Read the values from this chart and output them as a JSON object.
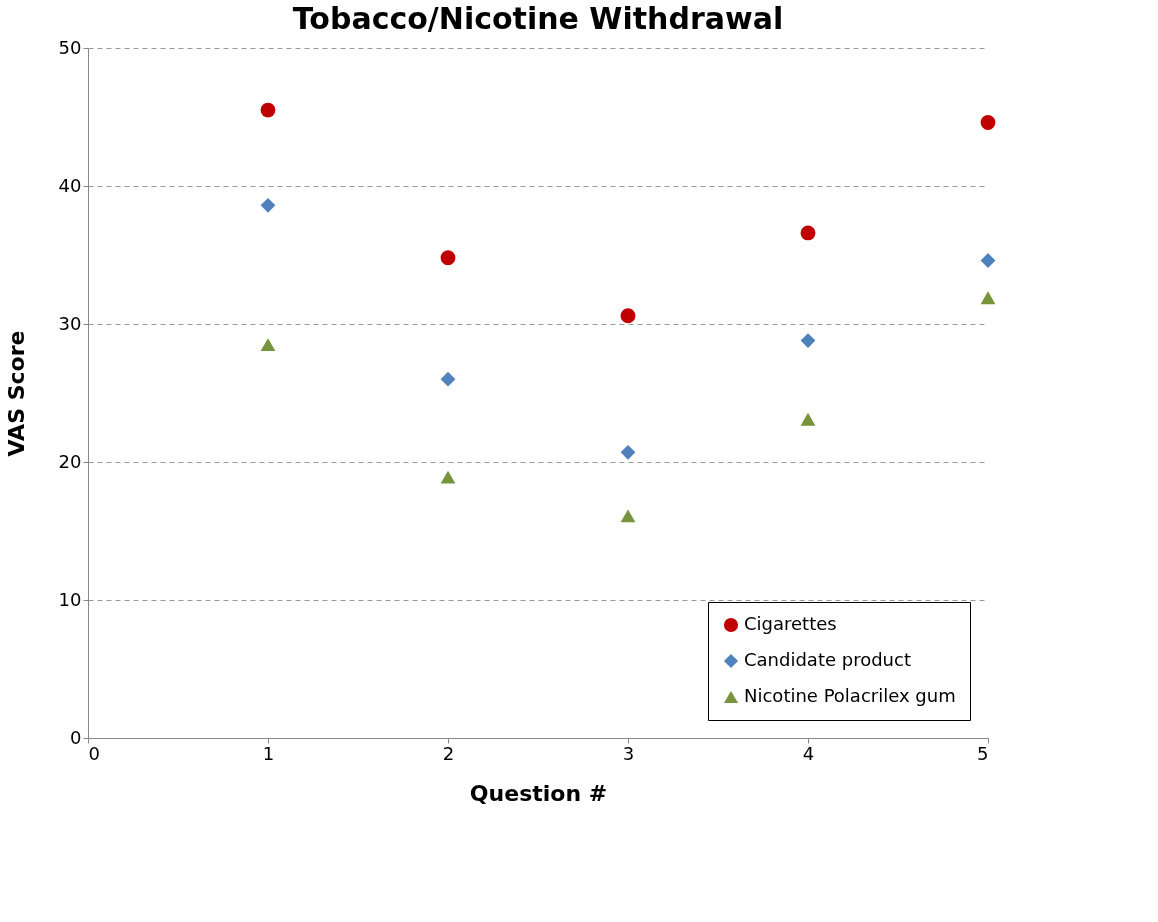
{
  "chart_data": {
    "type": "scatter",
    "title": "Tobacco/Nicotine Withdrawal",
    "xlabel": "Question #",
    "ylabel": "VAS Score",
    "x": [
      1,
      2,
      3,
      4,
      5
    ],
    "series": [
      {
        "name": "Cigarettes",
        "color": "#c00000",
        "marker": "circle",
        "values": [
          45.5,
          34.8,
          30.6,
          36.6,
          44.6
        ]
      },
      {
        "name": "Candidate product",
        "color": "#4f81bd",
        "marker": "diamond",
        "values": [
          38.6,
          26.0,
          20.7,
          28.8,
          34.6
        ]
      },
      {
        "name": "Nicotine Polacrilex gum",
        "color": "#77933c",
        "marker": "triangle",
        "values": [
          28.5,
          18.9,
          16.1,
          23.1,
          31.9
        ]
      }
    ],
    "xlim": [
      0,
      5
    ],
    "xticks": [
      0,
      1,
      2,
      3,
      4,
      5
    ],
    "ylim": [
      0,
      50
    ],
    "yticks": [
      0,
      10,
      20,
      30,
      40,
      50
    ],
    "grid": "y",
    "legend": "bottom right"
  }
}
